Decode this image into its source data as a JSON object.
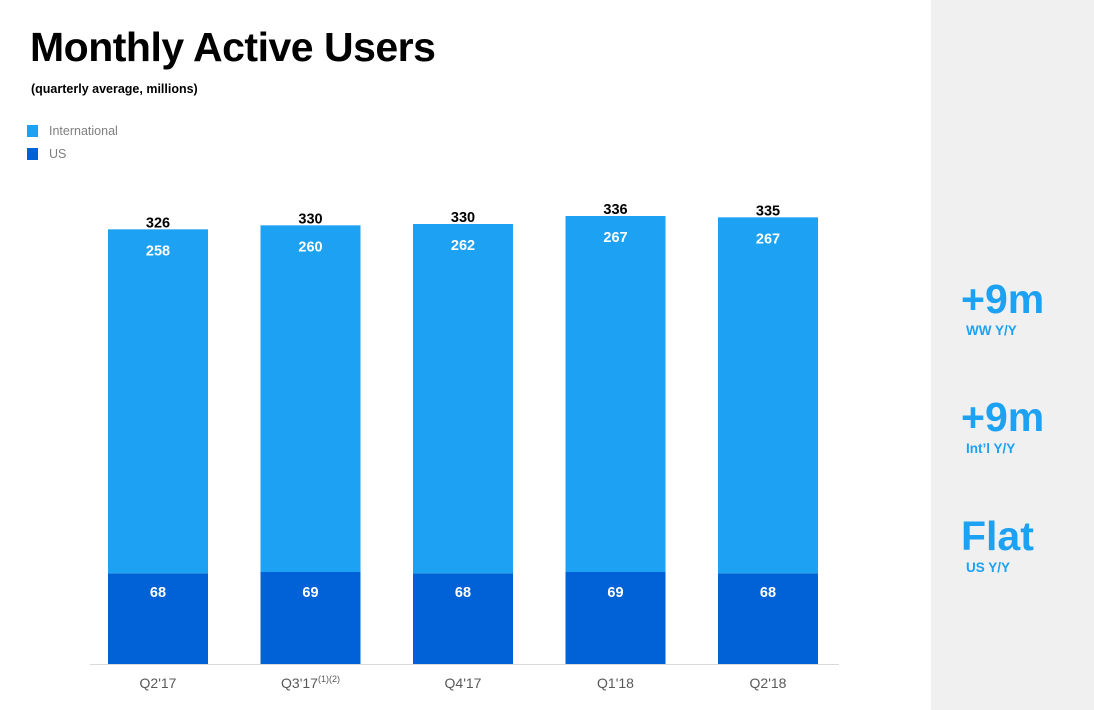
{
  "colors": {
    "international": "#1da1f2",
    "us": "#0062d6",
    "accent": "#1da1f2",
    "panel_bg": "#f0f0f0",
    "axis": "#d9d9d9",
    "tick_text": "#595959"
  },
  "chart_data": {
    "type": "bar",
    "stacked": true,
    "title": "Monthly Active Users",
    "subtitle": "(quarterly average, millions)",
    "categories": [
      "Q2'17",
      "Q3'17",
      "Q4'17",
      "Q1'18",
      "Q2'18"
    ],
    "category_notes": [
      "",
      "(1)(2)",
      "",
      "",
      ""
    ],
    "series": [
      {
        "name": "US",
        "color": "#0062d6",
        "values": [
          68,
          69,
          68,
          69,
          68
        ]
      },
      {
        "name": "International",
        "color": "#1da1f2",
        "values": [
          258,
          260,
          262,
          267,
          267
        ]
      }
    ],
    "totals": [
      326,
      330,
      330,
      336,
      335
    ],
    "legend": [
      {
        "name": "International",
        "color": "#1da1f2"
      },
      {
        "name": "US",
        "color": "#0062d6"
      }
    ],
    "legend_position": "top-left",
    "grid": false,
    "ylim": [
      0,
      336
    ]
  },
  "side_stats": [
    {
      "value": "+9m",
      "label": "WW Y/Y"
    },
    {
      "value": "+9m",
      "label": "Int’l Y/Y"
    },
    {
      "value": "Flat",
      "label": "US Y/Y"
    }
  ]
}
